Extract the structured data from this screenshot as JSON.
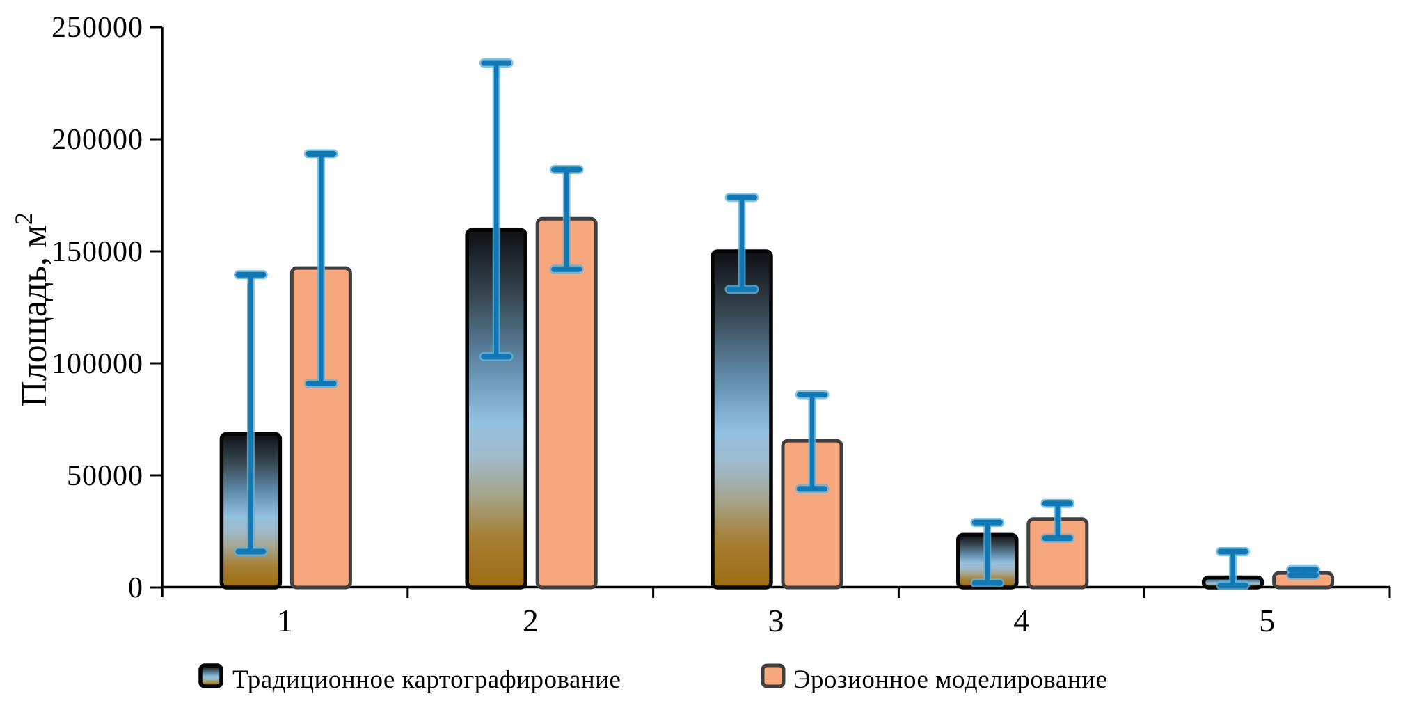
{
  "chart_data": {
    "type": "bar",
    "title": "",
    "xlabel": "",
    "ylabel": "Площадь, м²",
    "ylabel_main": "Площадь, м",
    "ylabel_sup": "2",
    "ylim": [
      0,
      250000
    ],
    "ytick_step": 50000,
    "yticks": [
      "0",
      "50000",
      "100000",
      "150000",
      "200000",
      "250000"
    ],
    "grid": false,
    "legend_position": "bottom",
    "categories": [
      "1",
      "2",
      "3",
      "4",
      "5"
    ],
    "series": [
      {
        "name": "Традиционное картографирование",
        "style": "soil-gradient",
        "values": [
          68500,
          159500,
          150000,
          23500,
          4500
        ],
        "error_low": [
          16000,
          103000,
          133000,
          2000,
          1000
        ],
        "error_high": [
          139500,
          234000,
          174000,
          29000,
          16000
        ]
      },
      {
        "name": "Эрозионное моделирование",
        "style": "solid-salmon",
        "values": [
          142500,
          164500,
          65500,
          30500,
          6500
        ],
        "error_low": [
          91000,
          142000,
          44000,
          22000,
          5500
        ],
        "error_high": [
          193500,
          186500,
          86000,
          37500,
          8000
        ]
      }
    ],
    "colors": {
      "salmon_fill": "#F6A77E",
      "salmon_border": "#3F3F3F",
      "soil_border": "#050505",
      "error_core": "#1178B4",
      "error_halo": "#5FB3DC",
      "axis": "#000000",
      "gradient_stops": [
        [
          "0%",
          "#0e1014"
        ],
        [
          "18%",
          "#36454f"
        ],
        [
          "36%",
          "#5d86a4"
        ],
        [
          "54%",
          "#95c1e1"
        ],
        [
          "64%",
          "#9fb9c9"
        ],
        [
          "74%",
          "#a5a58c"
        ],
        [
          "86%",
          "#a57f33"
        ],
        [
          "100%",
          "#9c6c12"
        ]
      ]
    }
  }
}
